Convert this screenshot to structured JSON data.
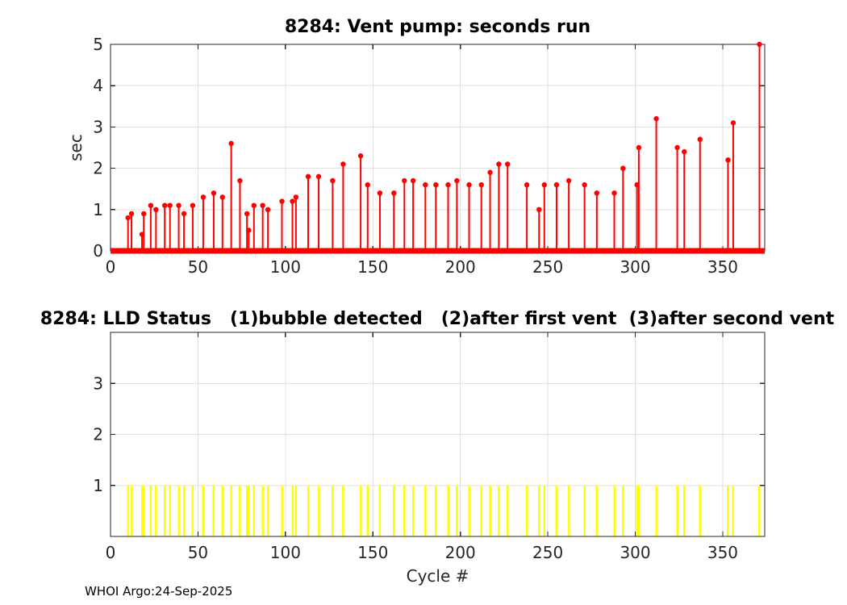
{
  "figure_title": "8284: Vent pump: seconds run",
  "footer_credit": "WHOI Argo:24-Sep-2025",
  "colors": {
    "stem_red": "#ff0000",
    "status_yellow": "#ffff00",
    "grid_gray": "#e0e0e0",
    "axis_dark": "#262626",
    "title_black": "#000000"
  },
  "chart_data": [
    {
      "type": "stem",
      "title": "8284: Vent pump: seconds run",
      "xlabel": "",
      "ylabel": "sec",
      "xlim": [
        0,
        374
      ],
      "ylim": [
        0,
        5
      ],
      "xticks": [
        0,
        50,
        100,
        150,
        200,
        250,
        300,
        350
      ],
      "yticks": [
        0,
        1,
        2,
        3,
        4,
        5
      ],
      "grid": true,
      "legend": "none",
      "baseline_value": 0,
      "series": [
        {
          "name": "vent-pump-seconds-run",
          "color": "#ff0000",
          "points": [
            [
              10,
              0.8
            ],
            [
              12,
              0.9
            ],
            [
              18,
              0.4
            ],
            [
              19,
              0.9
            ],
            [
              23,
              1.1
            ],
            [
              26,
              1.0
            ],
            [
              31,
              1.1
            ],
            [
              34,
              1.1
            ],
            [
              39,
              1.1
            ],
            [
              42,
              0.9
            ],
            [
              47,
              1.1
            ],
            [
              53,
              1.3
            ],
            [
              59,
              1.4
            ],
            [
              64,
              1.3
            ],
            [
              69,
              2.6
            ],
            [
              74,
              1.7
            ],
            [
              78,
              0.9
            ],
            [
              79,
              0.5
            ],
            [
              82,
              1.1
            ],
            [
              87,
              1.1
            ],
            [
              90,
              1.0
            ],
            [
              98,
              1.2
            ],
            [
              104,
              1.2
            ],
            [
              106,
              1.3
            ],
            [
              113,
              1.8
            ],
            [
              119,
              1.8
            ],
            [
              127,
              1.7
            ],
            [
              133,
              2.1
            ],
            [
              143,
              2.3
            ],
            [
              147,
              1.6
            ],
            [
              154,
              1.4
            ],
            [
              162,
              1.4
            ],
            [
              168,
              1.7
            ],
            [
              173,
              1.7
            ],
            [
              180,
              1.6
            ],
            [
              186,
              1.6
            ],
            [
              193,
              1.6
            ],
            [
              198,
              1.7
            ],
            [
              205,
              1.6
            ],
            [
              212,
              1.6
            ],
            [
              217,
              1.9
            ],
            [
              222,
              2.1
            ],
            [
              227,
              2.1
            ],
            [
              238,
              1.6
            ],
            [
              245,
              1.0
            ],
            [
              248,
              1.6
            ],
            [
              255,
              1.6
            ],
            [
              262,
              1.7
            ],
            [
              271,
              1.6
            ],
            [
              278,
              1.4
            ],
            [
              288,
              1.4
            ],
            [
              293,
              2.0
            ],
            [
              301,
              1.6
            ],
            [
              302,
              2.5
            ],
            [
              312,
              3.2
            ],
            [
              324,
              2.5
            ],
            [
              328,
              2.4
            ],
            [
              337,
              2.7
            ],
            [
              353,
              2.2
            ],
            [
              356,
              3.1
            ],
            [
              371,
              5.0
            ]
          ]
        }
      ]
    },
    {
      "type": "event-lines",
      "title": "8284: LLD Status   (1)bubble detected   (2)after first vent  (3)after second vent",
      "xlabel": "Cycle #",
      "ylabel": "",
      "xlim": [
        0,
        374
      ],
      "ylim": [
        0,
        4
      ],
      "xticks": [
        0,
        50,
        100,
        150,
        200,
        250,
        300,
        350
      ],
      "yticks": [
        1,
        2,
        3
      ],
      "grid": true,
      "legend": "none",
      "status_value": 1,
      "series": [
        {
          "name": "lld-status",
          "color": "#ffff00",
          "value": 1,
          "cycles": [
            10,
            12,
            18,
            19,
            23,
            26,
            31,
            34,
            39,
            42,
            47,
            53,
            59,
            64,
            69,
            74,
            78,
            79,
            82,
            87,
            90,
            98,
            104,
            106,
            113,
            119,
            127,
            133,
            143,
            147,
            154,
            162,
            168,
            173,
            180,
            186,
            193,
            198,
            205,
            212,
            217,
            222,
            227,
            238,
            245,
            248,
            255,
            262,
            271,
            278,
            288,
            293,
            301,
            302,
            312,
            324,
            328,
            337,
            353,
            356,
            371
          ]
        }
      ]
    }
  ]
}
